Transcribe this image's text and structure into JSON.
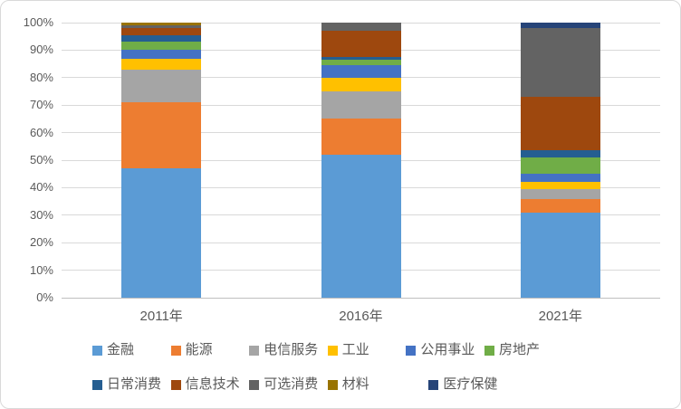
{
  "chart_data": {
    "type": "bar",
    "subtype": "stacked-100-percent-column",
    "title": "",
    "xlabel": "",
    "ylabel": "",
    "categories": [
      "2011年",
      "2016年",
      "2021年"
    ],
    "series": [
      {
        "name": "金融",
        "color": "#5B9BD5",
        "values": [
          47,
          52,
          31
        ]
      },
      {
        "name": "能源",
        "color": "#ED7D31",
        "values": [
          24,
          13,
          5
        ]
      },
      {
        "name": "电信服务",
        "color": "#A5A5A5",
        "values": [
          12,
          10,
          3.5
        ]
      },
      {
        "name": "工业",
        "color": "#FFC000",
        "values": [
          4,
          5,
          2.5
        ]
      },
      {
        "name": "公用事业",
        "color": "#4472C4",
        "values": [
          3,
          4.5,
          3
        ]
      },
      {
        "name": "房地产",
        "color": "#70AD47",
        "values": [
          3,
          2,
          6
        ]
      },
      {
        "name": "日常消费",
        "color": "#255E91",
        "values": [
          2.5,
          1,
          2.5
        ]
      },
      {
        "name": "信息技术",
        "color": "#9E480E",
        "values": [
          2.5,
          9.5,
          19.5
        ]
      },
      {
        "name": "可选消费",
        "color": "#636363",
        "values": [
          1,
          3,
          25
        ]
      },
      {
        "name": "材料",
        "color": "#997300",
        "values": [
          1,
          0,
          0
        ]
      },
      {
        "name": "医疗保健",
        "color": "#264478",
        "values": [
          0,
          0,
          2
        ]
      }
    ],
    "y_ticks": [
      "0%",
      "10%",
      "20%",
      "30%",
      "40%",
      "50%",
      "60%",
      "70%",
      "80%",
      "90%",
      "100%"
    ],
    "ylim": [
      0,
      100
    ],
    "grid": true,
    "gridline_color": "#D9D9D9",
    "axis_line_color": "#BFBFBF",
    "axis_text_color": "#595959",
    "legend_position": "bottom",
    "legend_rows": [
      [
        "金融",
        "能源",
        "电信服务",
        "工业",
        "公用事业",
        "房地产"
      ],
      [
        "日常消费",
        "信息技术",
        "可选消费",
        "材料",
        "医疗保健"
      ]
    ]
  }
}
